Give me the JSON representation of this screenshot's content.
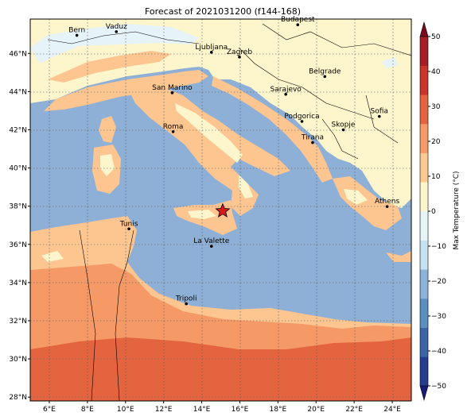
{
  "title": "Forecast of 2021031200 (f144-168)",
  "lon_ticks": [
    "6°E",
    "8°E",
    "10°E",
    "12°E",
    "14°E",
    "16°E",
    "18°E",
    "20°E",
    "22°E",
    "24°E"
  ],
  "lat_ticks": [
    "28°N",
    "30°N",
    "32°N",
    "34°N",
    "36°N",
    "38°N",
    "40°N",
    "42°N",
    "44°N",
    "46°N"
  ],
  "cities": [
    {
      "name": "Bern",
      "lon": 7.45,
      "lat": 46.95
    },
    {
      "name": "Vaduz",
      "lon": 9.52,
      "lat": 47.14
    },
    {
      "name": "Budapest",
      "lon": 19.04,
      "lat": 47.5
    },
    {
      "name": "Ljubljana",
      "lon": 14.51,
      "lat": 46.06
    },
    {
      "name": "Zagreb",
      "lon": 15.98,
      "lat": 45.81
    },
    {
      "name": "Belgrade",
      "lon": 20.46,
      "lat": 44.79
    },
    {
      "name": "San Marino",
      "lon": 12.45,
      "lat": 43.94
    },
    {
      "name": "Sarajevo",
      "lon": 18.41,
      "lat": 43.86
    },
    {
      "name": "Sofia",
      "lon": 23.32,
      "lat": 42.7
    },
    {
      "name": "Roma",
      "lon": 12.5,
      "lat": 41.9
    },
    {
      "name": "Podgorica",
      "lon": 19.26,
      "lat": 42.44
    },
    {
      "name": "Skopje",
      "lon": 21.43,
      "lat": 42.0
    },
    {
      "name": "Tirana",
      "lon": 19.82,
      "lat": 41.33
    },
    {
      "name": "Athens",
      "lon": 23.73,
      "lat": 37.98
    },
    {
      "name": "Tunis",
      "lon": 10.18,
      "lat": 36.81
    },
    {
      "name": "La Valette",
      "lon": 14.51,
      "lat": 35.9
    },
    {
      "name": "Tripoli",
      "lon": 13.19,
      "lat": 32.89
    }
  ],
  "marker": {
    "lon": 15.1,
    "lat": 37.75,
    "symbol": "star",
    "color": "#d7191c"
  },
  "colorbar": {
    "label": "Max Temperature (°C)",
    "ticks": [
      "−50",
      "−40",
      "−30",
      "−20",
      "−10",
      "0",
      "10",
      "20",
      "30",
      "40",
      "50"
    ],
    "colors": [
      "#1a1a7a",
      "#263c8f",
      "#3a66a8",
      "#5b8fc0",
      "#8db4d8",
      "#c4e2ef",
      "#e8f5f8",
      "#fdf6cc",
      "#fdc990",
      "#f59a66",
      "#e3643f",
      "#c9352a",
      "#a51d27",
      "#7a0a1c"
    ]
  },
  "chart_data": {
    "type": "heatmap",
    "title": "Forecast of 2021031200 (f144-168)",
    "xlabel": "",
    "ylabel": "",
    "xlim": [
      5,
      25
    ],
    "ylim": [
      27.8,
      47.8
    ],
    "colorbar_label": "Max Temperature (°C)",
    "colorbar_range": [
      -50,
      50
    ],
    "colorbar_step": 10,
    "legend": "right",
    "grid": true
  },
  "colors": {
    "sea": "#8fb0d6",
    "land_cool": "#fdf5cc",
    "land_mild": "#fdc590",
    "land_warm": "#f59a66",
    "land_hot": "#e3643f",
    "snow": "#e6f3f9"
  }
}
